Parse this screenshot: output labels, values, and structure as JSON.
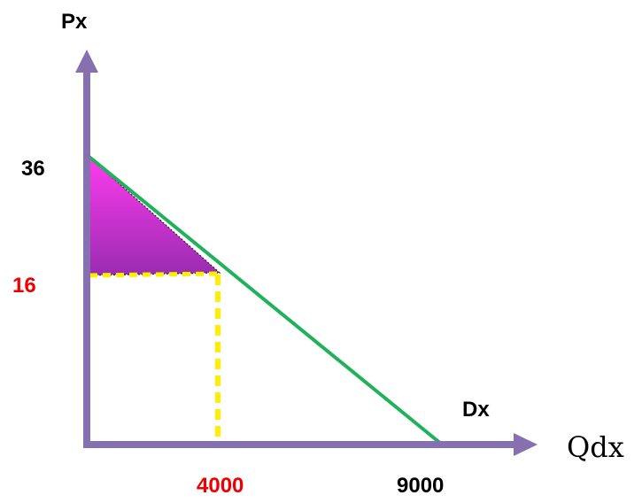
{
  "labels": {
    "y_axis": "Px",
    "x_axis": "Qdx",
    "demand_curve": "Dx",
    "price_max": "36",
    "price_eq": "16",
    "quantity_eq": "4000",
    "quantity_max": "9000"
  },
  "colors": {
    "axis": "#8670b0",
    "demand_line": "#1fb25a",
    "guide_lines": "#ffee00",
    "surplus_top": "#ff3cf0",
    "surplus_bottom": "#9a2bb0",
    "text_default": "#000000",
    "text_highlight": "#ee0000"
  },
  "chart_data": {
    "type": "line",
    "curve": "demand",
    "points": [
      {
        "q": 0,
        "p": 36
      },
      {
        "q": 4000,
        "p": 16
      },
      {
        "q": 9000,
        "p": 0
      }
    ],
    "equilibrium": {
      "q": 4000,
      "p": 16
    },
    "shaded_region": "consumer surplus"
  }
}
